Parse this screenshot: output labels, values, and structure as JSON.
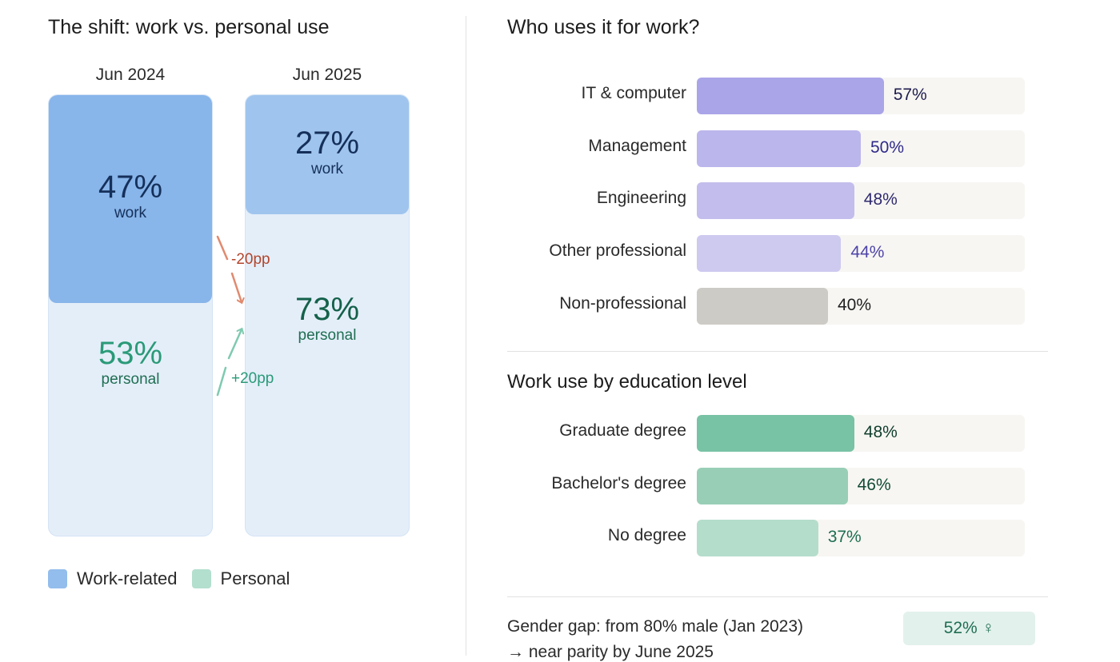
{
  "chart_data": [
    {
      "type": "bar",
      "stacked": true,
      "title": "The shift: work vs. personal use",
      "categories": [
        "Jun 2024",
        "Jun 2025"
      ],
      "series": [
        {
          "name": "Work-related",
          "values": [
            47,
            27
          ],
          "labels": [
            "47%",
            "27%"
          ],
          "sublabel": "work"
        },
        {
          "name": "Personal",
          "values": [
            53,
            73
          ],
          "labels": [
            "53%",
            "73%"
          ],
          "sublabel": "personal"
        }
      ],
      "annotations": [
        "-20pp",
        "+20pp"
      ],
      "legend": "bottom-left",
      "colors": {
        "work_2024": "#88b5ea",
        "work_2025": "#9fc5ee",
        "personal_bg": "#e4eef9",
        "legend_work": "#93bdec",
        "legend_personal": "#b3dfcf",
        "down_arrow": "#e08a6f",
        "up_arrow": "#7fcab0"
      }
    },
    {
      "type": "bar",
      "orientation": "horizontal",
      "title": "Who uses it for work?",
      "categories": [
        "IT & computer",
        "Management",
        "Engineering",
        "Other professional",
        "Non-professional"
      ],
      "values": [
        57,
        50,
        48,
        44,
        40
      ],
      "labels": [
        "57%",
        "50%",
        "48%",
        "44%",
        "40%"
      ],
      "colors": [
        "#aaa5e8",
        "#bbb6ec",
        "#c2bdec",
        "#cdc9ef",
        "#cdcbc6"
      ],
      "value_colors": [
        "#1e1c4c",
        "#2f2a8a",
        "#2f2a6e",
        "#4d44a8",
        "#1f1f1f"
      ]
    },
    {
      "type": "bar",
      "orientation": "horizontal",
      "title": "Work use by education level",
      "categories": [
        "Graduate degree",
        "Bachelor's degree",
        "No degree"
      ],
      "values": [
        48,
        46,
        37
      ],
      "labels": [
        "48%",
        "46%",
        "37%"
      ],
      "colors": [
        "#78c2a5",
        "#98ceb6",
        "#b5ddcc"
      ],
      "value_colors": [
        "#0f3d2c",
        "#124a35",
        "#1f6e52"
      ]
    }
  ],
  "gender": {
    "line1": "Gender gap: from 80% male (Jan 2023)",
    "line2": "→ near parity by June 2025",
    "badge": "52% ♀"
  }
}
